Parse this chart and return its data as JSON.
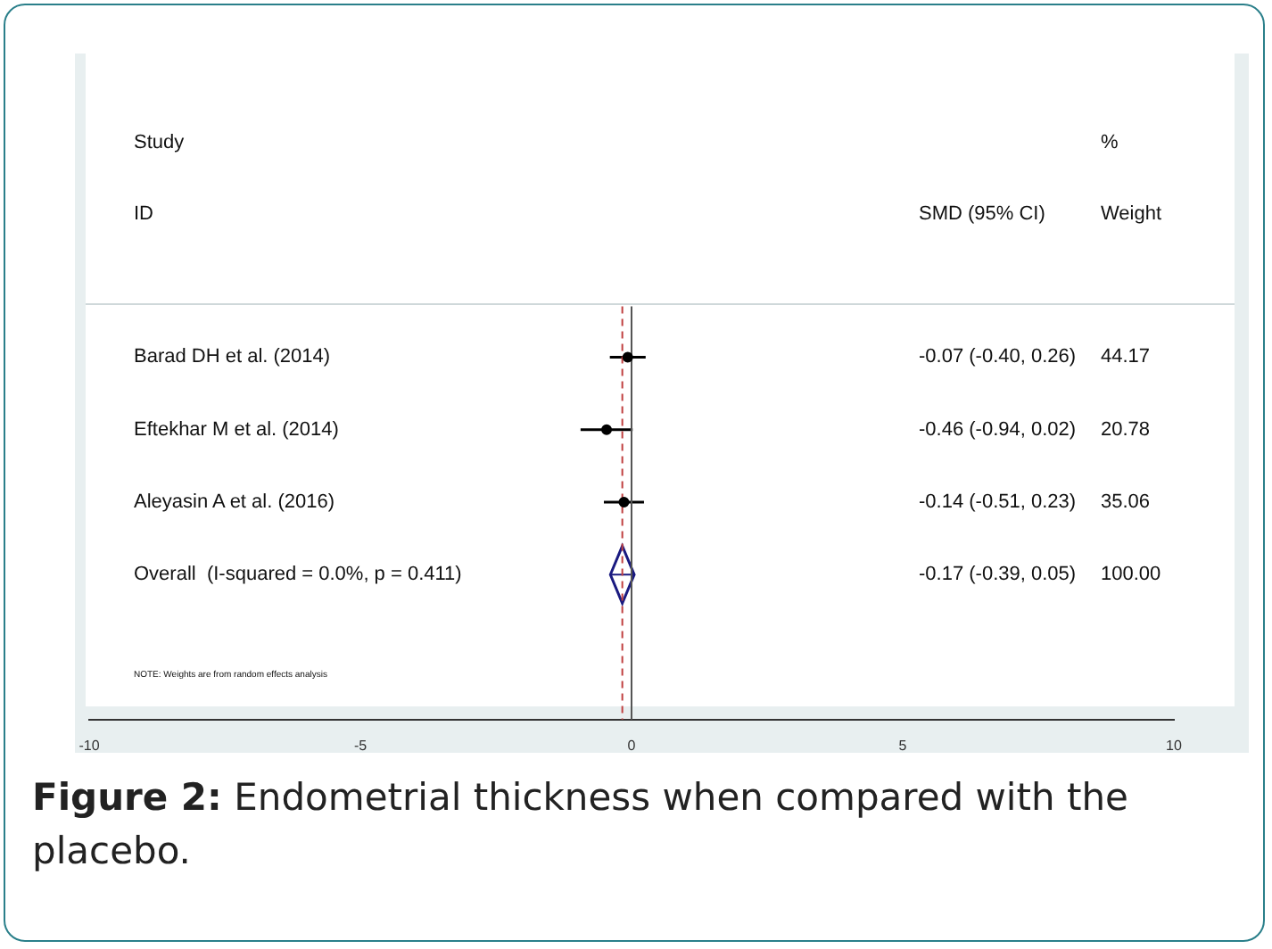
{
  "chart_data": {
    "type": "scatter",
    "orientation": "horizontal",
    "title": "Figure 2: Endometrial thickness when compared with the placebo.",
    "categories": [
      "Barad DH et al. (2014)",
      "Eftekhar M et al. (2014)",
      "Aleyasin A et al. (2016)",
      "Overall  (I-squared = 0.0%, p = 0.411)"
    ],
    "series": [
      {
        "color": "#000000",
        "marker": "circle",
        "values": [
          -0.07,
          -0.46,
          -0.14,
          null
        ],
        "errors": [
          [
            -0.4,
            0.26
          ],
          [
            -0.94,
            0.02
          ],
          [
            -0.51,
            0.23
          ],
          null
        ]
      },
      {
        "color": "#1a1a80",
        "marker": "diamond",
        "values": [
          null,
          null,
          null,
          -0.17
        ],
        "errors": [
          null,
          null,
          null,
          [
            -0.39,
            0.05
          ]
        ]
      }
    ],
    "xlim": [
      -10,
      10
    ],
    "xticks": [
      -10,
      -5,
      0,
      5,
      10
    ],
    "grid": false,
    "legend": false,
    "ref_lines": [
      {
        "axis": "x",
        "value": 0,
        "color": "#555555",
        "line_style": "solid"
      },
      {
        "axis": "x",
        "value": -0.17,
        "color": "#c04040",
        "line_style": "dashed"
      }
    ],
    "annotations": [
      "Study",
      "ID",
      "SMD (95% CI)",
      "%",
      "Weight",
      "-0.07 (-0.40, 0.26)",
      "44.17",
      "-0.46 (-0.94, 0.02)",
      "20.78",
      "-0.14 (-0.51, 0.23)",
      "35.06",
      "-0.17 (-0.39, 0.05)",
      "100.00",
      "NOTE: Weights are from random effects analysis"
    ]
  }
}
